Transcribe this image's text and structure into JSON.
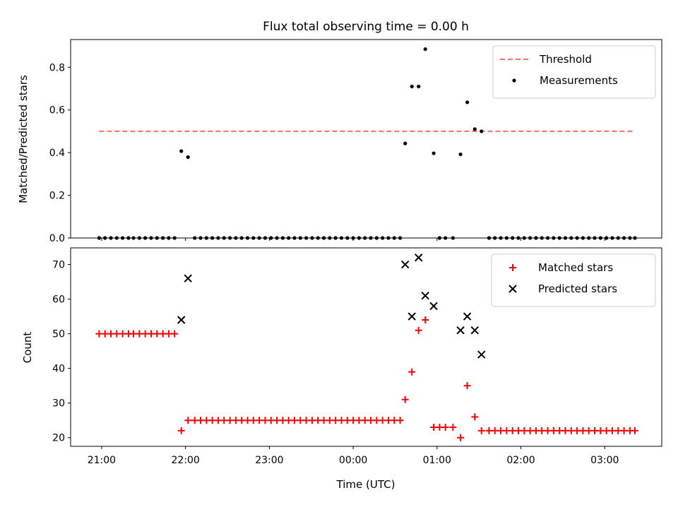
{
  "chart_data": [
    {
      "type": "scatter",
      "title": "Flux total observing time = 0.00 h",
      "xlabel": "",
      "ylabel": "Matched/Predicted stars",
      "x_ticks": [
        "21:00",
        "22:00",
        "23:00",
        "00:00",
        "01:00",
        "02:00",
        "03:00"
      ],
      "x_tick_hours": [
        0,
        1,
        2,
        3,
        4,
        5,
        6
      ],
      "xlim_hours": [
        -0.37,
        6.68
      ],
      "ylim": [
        0,
        0.93
      ],
      "y_ticks": [
        "0.0",
        "0.2",
        "0.4",
        "0.6",
        "0.8"
      ],
      "y_tick_values": [
        0,
        0.2,
        0.4,
        0.6,
        0.8
      ],
      "legend_position": "top-right",
      "threshold": {
        "name": "Threshold",
        "value": 0.5,
        "x_range_hours": [
          -0.03,
          6.35
        ],
        "color": "#ff6f6f"
      },
      "series": [
        {
          "name": "Measurements",
          "color": "#000000",
          "points": [
            [
              -0.03,
              0
            ],
            [
              0.04,
              0
            ],
            [
              0.11,
              0
            ],
            [
              0.18,
              0
            ],
            [
              0.25,
              0
            ],
            [
              0.32,
              0
            ],
            [
              0.38,
              0
            ],
            [
              0.45,
              0
            ],
            [
              0.52,
              0
            ],
            [
              0.59,
              0
            ],
            [
              0.66,
              0
            ],
            [
              0.73,
              0
            ],
            [
              0.8,
              0
            ],
            [
              0.87,
              0
            ],
            [
              0.95,
              0.407
            ],
            [
              1.03,
              0.379
            ],
            [
              1.11,
              0
            ],
            [
              1.18,
              0
            ],
            [
              1.25,
              0
            ],
            [
              1.32,
              0
            ],
            [
              1.39,
              0
            ],
            [
              1.46,
              0
            ],
            [
              1.53,
              0
            ],
            [
              1.6,
              0
            ],
            [
              1.67,
              0
            ],
            [
              1.74,
              0
            ],
            [
              1.81,
              0
            ],
            [
              1.88,
              0
            ],
            [
              1.95,
              0
            ],
            [
              2.02,
              0
            ],
            [
              2.09,
              0
            ],
            [
              2.16,
              0
            ],
            [
              2.23,
              0
            ],
            [
              2.3,
              0
            ],
            [
              2.37,
              0
            ],
            [
              2.44,
              0
            ],
            [
              2.51,
              0
            ],
            [
              2.58,
              0
            ],
            [
              2.65,
              0
            ],
            [
              2.72,
              0
            ],
            [
              2.79,
              0
            ],
            [
              2.86,
              0
            ],
            [
              2.93,
              0
            ],
            [
              3.0,
              0
            ],
            [
              3.07,
              0
            ],
            [
              3.14,
              0
            ],
            [
              3.21,
              0
            ],
            [
              3.28,
              0
            ],
            [
              3.35,
              0
            ],
            [
              3.42,
              0
            ],
            [
              3.49,
              0
            ],
            [
              3.56,
              0
            ],
            [
              3.62,
              0.443
            ],
            [
              3.7,
              0.71
            ],
            [
              3.78,
              0.71
            ],
            [
              3.86,
              0.885
            ],
            [
              3.96,
              0.397
            ],
            [
              4.03,
              0
            ],
            [
              4.1,
              0
            ],
            [
              4.19,
              0
            ],
            [
              4.28,
              0.392
            ],
            [
              4.36,
              0.636
            ],
            [
              4.45,
              0.51
            ],
            [
              4.53,
              0.5
            ],
            [
              4.62,
              0
            ],
            [
              4.69,
              0
            ],
            [
              4.76,
              0
            ],
            [
              4.83,
              0
            ],
            [
              4.9,
              0
            ],
            [
              4.97,
              0
            ],
            [
              5.04,
              0
            ],
            [
              5.11,
              0
            ],
            [
              5.18,
              0
            ],
            [
              5.25,
              0
            ],
            [
              5.32,
              0
            ],
            [
              5.39,
              0
            ],
            [
              5.46,
              0
            ],
            [
              5.53,
              0
            ],
            [
              5.6,
              0
            ],
            [
              5.67,
              0
            ],
            [
              5.74,
              0
            ],
            [
              5.81,
              0
            ],
            [
              5.88,
              0
            ],
            [
              5.95,
              0
            ],
            [
              6.02,
              0
            ],
            [
              6.09,
              0
            ],
            [
              6.16,
              0
            ],
            [
              6.23,
              0
            ],
            [
              6.3,
              0
            ],
            [
              6.36,
              0
            ]
          ]
        }
      ]
    },
    {
      "type": "scatter",
      "title": "",
      "xlabel": "Time (UTC)",
      "ylabel": "Count",
      "x_ticks": [
        "21:00",
        "22:00",
        "23:00",
        "00:00",
        "01:00",
        "02:00",
        "03:00"
      ],
      "x_tick_hours": [
        0,
        1,
        2,
        3,
        4,
        5,
        6
      ],
      "xlim_hours": [
        -0.37,
        6.68
      ],
      "ylim": [
        17.5,
        74.8
      ],
      "y_ticks": [
        "20",
        "30",
        "40",
        "50",
        "60",
        "70"
      ],
      "y_tick_values": [
        20,
        30,
        40,
        50,
        60,
        70
      ],
      "legend_position": "top-right",
      "series": [
        {
          "name": "Matched stars",
          "color": "#ff0000",
          "marker": "plus",
          "points": [
            [
              -0.03,
              50
            ],
            [
              0.04,
              50
            ],
            [
              0.11,
              50
            ],
            [
              0.18,
              50
            ],
            [
              0.25,
              50
            ],
            [
              0.32,
              50
            ],
            [
              0.38,
              50
            ],
            [
              0.45,
              50
            ],
            [
              0.52,
              50
            ],
            [
              0.59,
              50
            ],
            [
              0.66,
              50
            ],
            [
              0.73,
              50
            ],
            [
              0.8,
              50
            ],
            [
              0.87,
              50
            ],
            [
              0.95,
              22
            ],
            [
              1.03,
              25
            ],
            [
              1.11,
              25
            ],
            [
              1.18,
              25
            ],
            [
              1.25,
              25
            ],
            [
              1.32,
              25
            ],
            [
              1.39,
              25
            ],
            [
              1.46,
              25
            ],
            [
              1.53,
              25
            ],
            [
              1.6,
              25
            ],
            [
              1.67,
              25
            ],
            [
              1.74,
              25
            ],
            [
              1.81,
              25
            ],
            [
              1.88,
              25
            ],
            [
              1.95,
              25
            ],
            [
              2.02,
              25
            ],
            [
              2.09,
              25
            ],
            [
              2.16,
              25
            ],
            [
              2.23,
              25
            ],
            [
              2.3,
              25
            ],
            [
              2.37,
              25
            ],
            [
              2.44,
              25
            ],
            [
              2.51,
              25
            ],
            [
              2.58,
              25
            ],
            [
              2.65,
              25
            ],
            [
              2.72,
              25
            ],
            [
              2.79,
              25
            ],
            [
              2.86,
              25
            ],
            [
              2.93,
              25
            ],
            [
              3.0,
              25
            ],
            [
              3.07,
              25
            ],
            [
              3.14,
              25
            ],
            [
              3.21,
              25
            ],
            [
              3.28,
              25
            ],
            [
              3.35,
              25
            ],
            [
              3.42,
              25
            ],
            [
              3.49,
              25
            ],
            [
              3.56,
              25
            ],
            [
              3.62,
              31
            ],
            [
              3.7,
              39
            ],
            [
              3.78,
              51
            ],
            [
              3.86,
              54
            ],
            [
              3.96,
              23
            ],
            [
              4.03,
              23
            ],
            [
              4.1,
              23
            ],
            [
              4.19,
              23
            ],
            [
              4.28,
              20
            ],
            [
              4.36,
              35
            ],
            [
              4.45,
              26
            ],
            [
              4.53,
              22
            ],
            [
              4.62,
              22
            ],
            [
              4.69,
              22
            ],
            [
              4.76,
              22
            ],
            [
              4.83,
              22
            ],
            [
              4.9,
              22
            ],
            [
              4.97,
              22
            ],
            [
              5.04,
              22
            ],
            [
              5.11,
              22
            ],
            [
              5.18,
              22
            ],
            [
              5.25,
              22
            ],
            [
              5.32,
              22
            ],
            [
              5.39,
              22
            ],
            [
              5.46,
              22
            ],
            [
              5.53,
              22
            ],
            [
              5.6,
              22
            ],
            [
              5.67,
              22
            ],
            [
              5.74,
              22
            ],
            [
              5.81,
              22
            ],
            [
              5.88,
              22
            ],
            [
              5.95,
              22
            ],
            [
              6.02,
              22
            ],
            [
              6.09,
              22
            ],
            [
              6.16,
              22
            ],
            [
              6.23,
              22
            ],
            [
              6.3,
              22
            ],
            [
              6.36,
              22
            ]
          ]
        },
        {
          "name": "Predicted stars",
          "color": "#000000",
          "marker": "x",
          "points": [
            [
              0.95,
              54
            ],
            [
              1.03,
              66
            ],
            [
              3.62,
              70
            ],
            [
              3.7,
              55
            ],
            [
              3.78,
              72
            ],
            [
              3.86,
              61
            ],
            [
              3.96,
              58
            ],
            [
              4.28,
              51
            ],
            [
              4.36,
              55
            ],
            [
              4.45,
              51
            ],
            [
              4.53,
              44
            ]
          ]
        }
      ]
    }
  ]
}
